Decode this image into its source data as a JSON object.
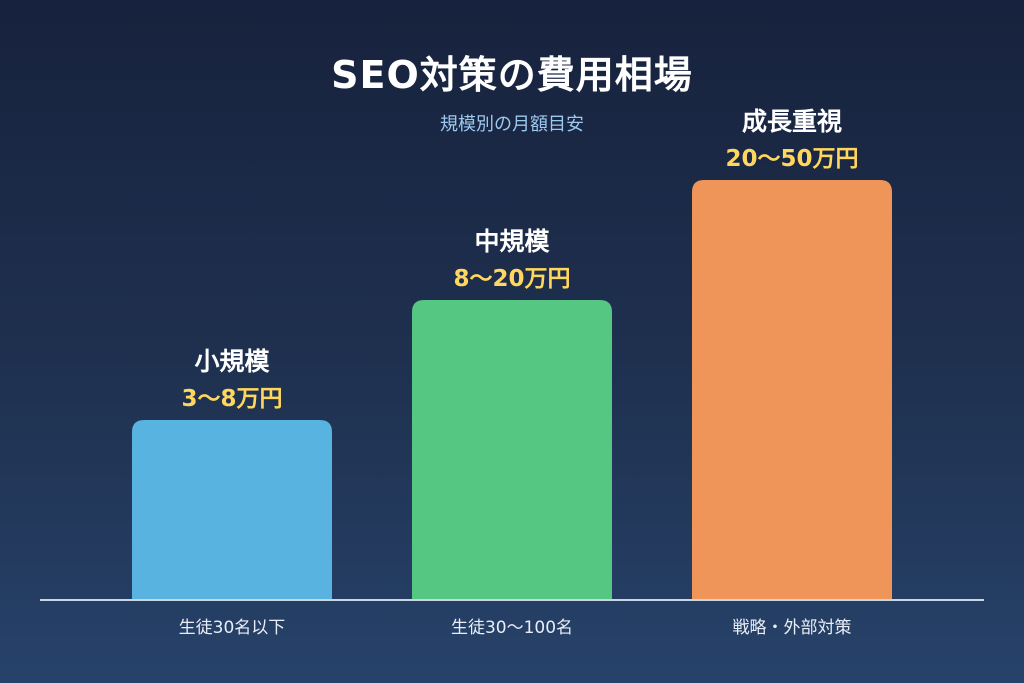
{
  "title": "SEO対策の費用相場",
  "subtitle": "規模別の月額目安",
  "colors": {
    "value_text": "#ffd75e",
    "baseline": "#c9d4e6"
  },
  "chart_data": {
    "type": "bar",
    "title": "SEO対策の費用相場",
    "subtitle": "規模別の月額目安",
    "xlabel": "",
    "ylabel": "",
    "grid": false,
    "unit": "万円",
    "categories": [
      "生徒30名以下",
      "生徒30〜100名",
      "戦略・外部対策"
    ],
    "bars": [
      {
        "name": "小規模",
        "value_label": "3〜8万円",
        "range": [
          3,
          8
        ],
        "color": "#58b3e0"
      },
      {
        "name": "中規模",
        "value_label": "8〜20万円",
        "range": [
          8,
          20
        ],
        "color": "#56c783"
      },
      {
        "name": "成長重視",
        "value_label": "20〜50万円",
        "range": [
          20,
          50
        ],
        "color": "#f0955a"
      }
    ]
  }
}
